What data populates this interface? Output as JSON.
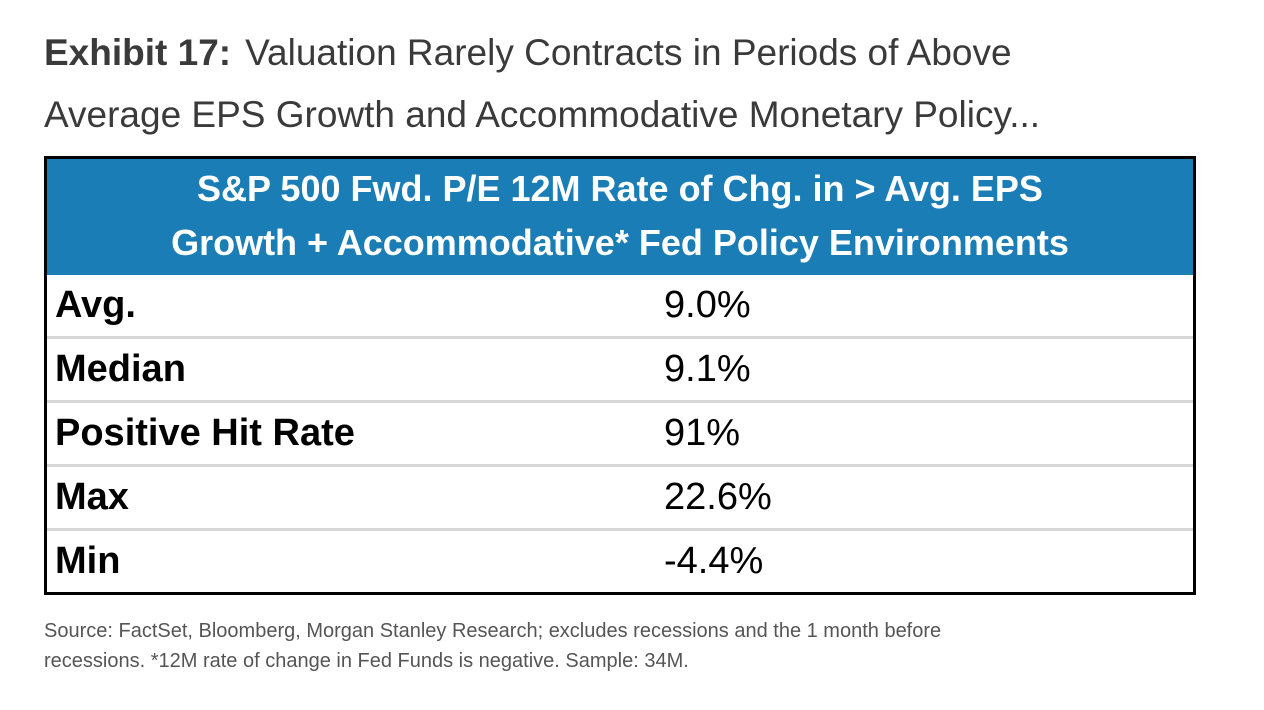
{
  "exhibit": {
    "label": "Exhibit 17:",
    "title_line1": "Valuation Rarely Contracts in Periods of Above",
    "title_line2": "Average EPS Growth and Accommodative Monetary Policy..."
  },
  "chart_data": {
    "type": "table",
    "header_line1": "S&P 500 Fwd. P/E 12M Rate of Chg. in > Avg. EPS",
    "header_line2": "Growth + Accommodative* Fed Policy Environments",
    "rows": [
      {
        "label": "Avg.",
        "value": "9.0%"
      },
      {
        "label": "Median",
        "value": "9.1%"
      },
      {
        "label": "Positive Hit Rate",
        "value": "91%"
      },
      {
        "label": "Max",
        "value": "22.6%"
      },
      {
        "label": "Min",
        "value": "-4.4%"
      }
    ]
  },
  "source": {
    "line1": "Source: FactSet, Bloomberg, Morgan Stanley Research; excludes recessions and the 1 month before",
    "line2": "recessions. *12M rate of change in Fed Funds is negative. Sample: 34M."
  },
  "colors": {
    "header_background": "#1a7db6",
    "header_text": "#ffffff",
    "row_divider": "#d6d6d6"
  }
}
